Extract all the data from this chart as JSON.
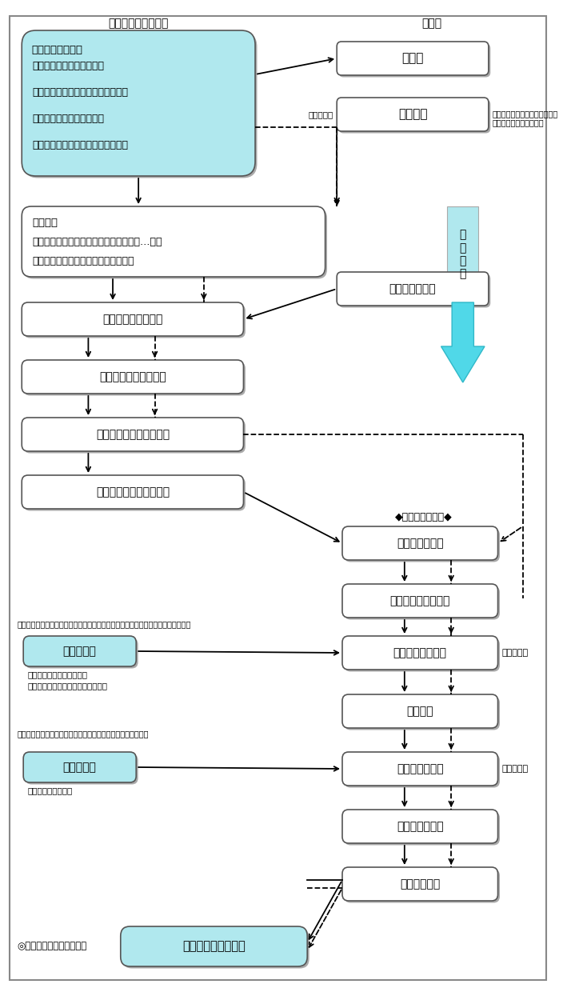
{
  "fig_width": 7.14,
  "fig_height": 12.35,
  "bg_color": "#ffffff",
  "light_cyan": "#b0e8ee",
  "box1_text_line0": "まちづくりの発意",
  "box1_lines": [
    "・良好な住環境を守りたい",
    "・建築協定の期間が終了してしまう",
    "・災害に強いまちにしたい",
    "・もっと良いまちにしたい　　など"
  ],
  "header_left": "【地区のみなさん】",
  "header_right": "【市】",
  "box_soudan": "相　談",
  "box_hataraki": "働き掛け",
  "note_hataraki1": "（誘導型）",
  "note_hataraki2": "緊急性や重要性が高い場合は、\n市側から働き掛けます。",
  "label_sakutei": "策\n定\n支\n援",
  "box_hanashiai_line1": "話し合い",
  "box_hanashiai_lines": [
    "　・まちの課題　　・まちの将来像　　…など",
    "認識の共有化（住民同士、住民と市）"
  ],
  "box_genkyou": "地区の現況調査",
  "box_kentou": "地区計画の案の検討",
  "box_iko": "意向の把握、合意形成",
  "box_jimoto_sakusei": "地区計画の地元案の作成",
  "box_jimoto_moushide": "地区計画の地元案の申出",
  "label_hoteki": "◆法的手続の開始◆",
  "box_shinsa": "申出審査委員会",
  "box_gensaku": "地区計画原案の作成",
  "note_juyran1": "＊縦覧期間の満了の日の翌日から１週間の間に意見書を提出することができます。",
  "box_iken1": "意見の反映",
  "note_iken1_lines": [
    "土地所有者及び利害関係人",
    "（土地に関する権利の登記名義人）"
  ],
  "box_juyran1": "原案（条例）縦覧",
  "label_2weeks1": "（２週間）",
  "box_an_sakusei": "案の作成",
  "note_juyran2": "＊縦覧期間の満了の日まで意見書を提出することができます。",
  "box_iken2": "意見の反映",
  "note_iken2": "住民及び利害関係人",
  "box_juyran2": "案（法定）縦覧",
  "label_2weeks2": "（２週間）",
  "box_toshi_shingi": "都市計画審議会",
  "box_chiji": "知事との協議",
  "box_toshi_kettei": "都市計画決定・告示",
  "label_start": "◎地区計画の運用スタート"
}
